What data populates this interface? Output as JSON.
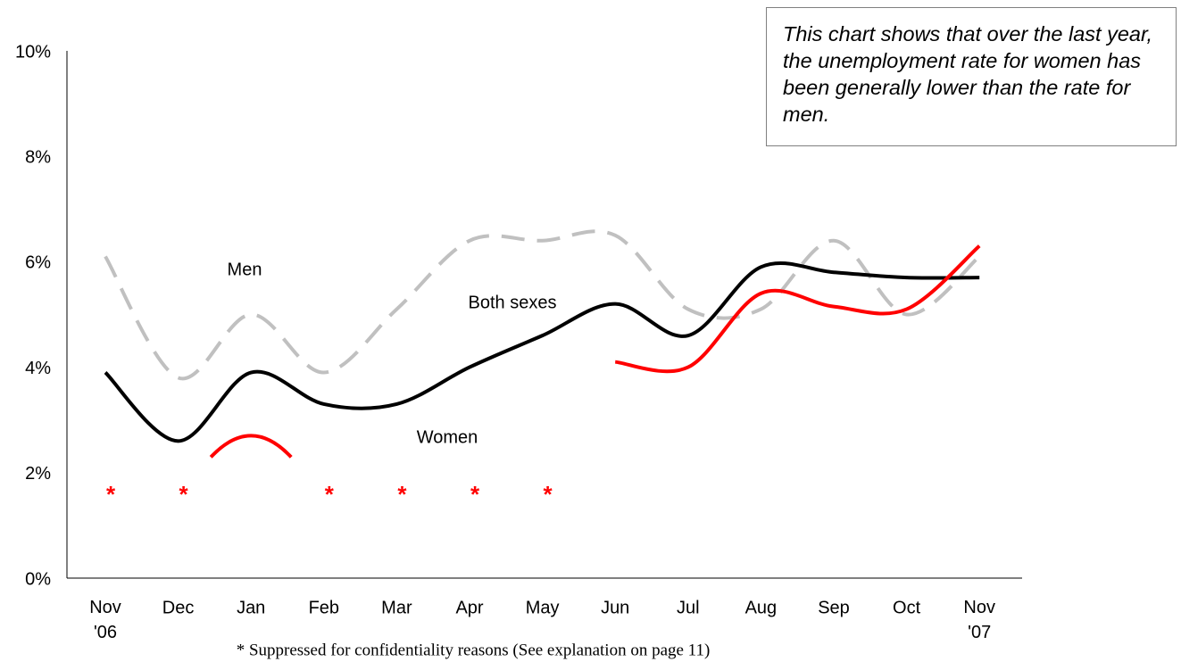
{
  "chart_data": {
    "type": "line",
    "annotation": "This chart shows that over the last year, the unemployment rate for women has been generally lower than the rate for men.",
    "footnote": "* Suppressed for confidentiality reasons  (See explanation on page 11)",
    "suppressed_marker": "*",
    "categories": [
      "Nov\n'06",
      "Dec",
      "Jan",
      "Feb",
      "Mar",
      "Apr",
      "May",
      "Jun",
      "Jul",
      "Aug",
      "Sep",
      "Oct",
      "Nov\n'07"
    ],
    "series": [
      {
        "name": "Men",
        "color": "#c0c0c0",
        "dashed": true,
        "values": [
          6.1,
          3.8,
          5.0,
          3.9,
          5.1,
          6.4,
          6.4,
          6.5,
          5.1,
          5.1,
          6.4,
          5.0,
          6.1
        ]
      },
      {
        "name": "Both sexes",
        "color": "#000000",
        "dashed": false,
        "values": [
          3.9,
          2.6,
          3.9,
          3.3,
          3.3,
          4.0,
          4.6,
          5.2,
          4.6,
          5.9,
          5.8,
          5.7,
          5.7
        ]
      },
      {
        "name": "Women",
        "color": "#ff0000",
        "dashed": false,
        "values": [
          null,
          null,
          2.7,
          null,
          null,
          null,
          null,
          4.1,
          4.0,
          5.4,
          5.15,
          5.1,
          6.3
        ]
      }
    ],
    "ylim": [
      0,
      10
    ],
    "yticks": [
      {
        "value": 0,
        "label": "0%"
      },
      {
        "value": 2,
        "label": "2%"
      },
      {
        "value": 4,
        "label": "4%"
      },
      {
        "value": 6,
        "label": "6%"
      },
      {
        "value": 8,
        "label": "8%"
      },
      {
        "value": 10,
        "label": "10%"
      }
    ],
    "grid": false
  }
}
